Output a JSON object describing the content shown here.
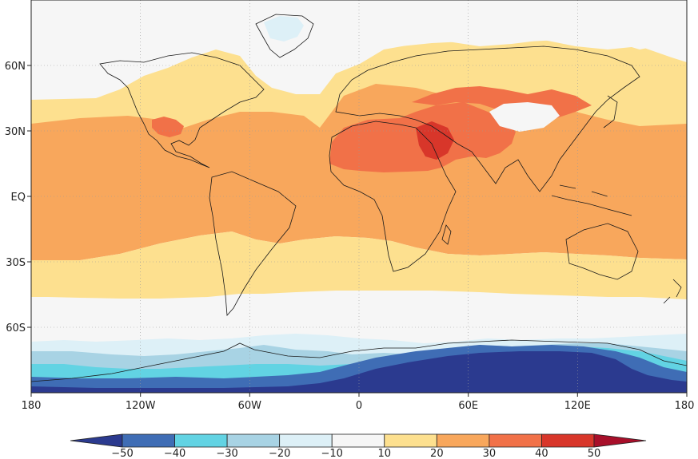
{
  "map": {
    "x_tick_labels": [
      "180",
      "120W",
      "60W",
      "0",
      "60E",
      "120E",
      "180"
    ],
    "y_tick_labels": [
      "60N",
      "30N",
      "EQ",
      "30S",
      "60S"
    ]
  },
  "colorbar": {
    "labels": [
      "−50",
      "−40",
      "−30",
      "−20",
      "−10",
      "10",
      "20",
      "30",
      "40",
      "50"
    ],
    "colors": [
      "#2b3a8f",
      "#3f6db5",
      "#62d3e3",
      "#a8d3e4",
      "#ddf0f7",
      "#f6f6f6",
      "#fde08f",
      "#f8a75c",
      "#f17148",
      "#d8362a",
      "#a80f2a"
    ]
  },
  "colors": {
    "ocean_land_neutral": "#f6f6f6",
    "coast": "#1a1a1a",
    "grid": "#9a9a9a"
  }
}
